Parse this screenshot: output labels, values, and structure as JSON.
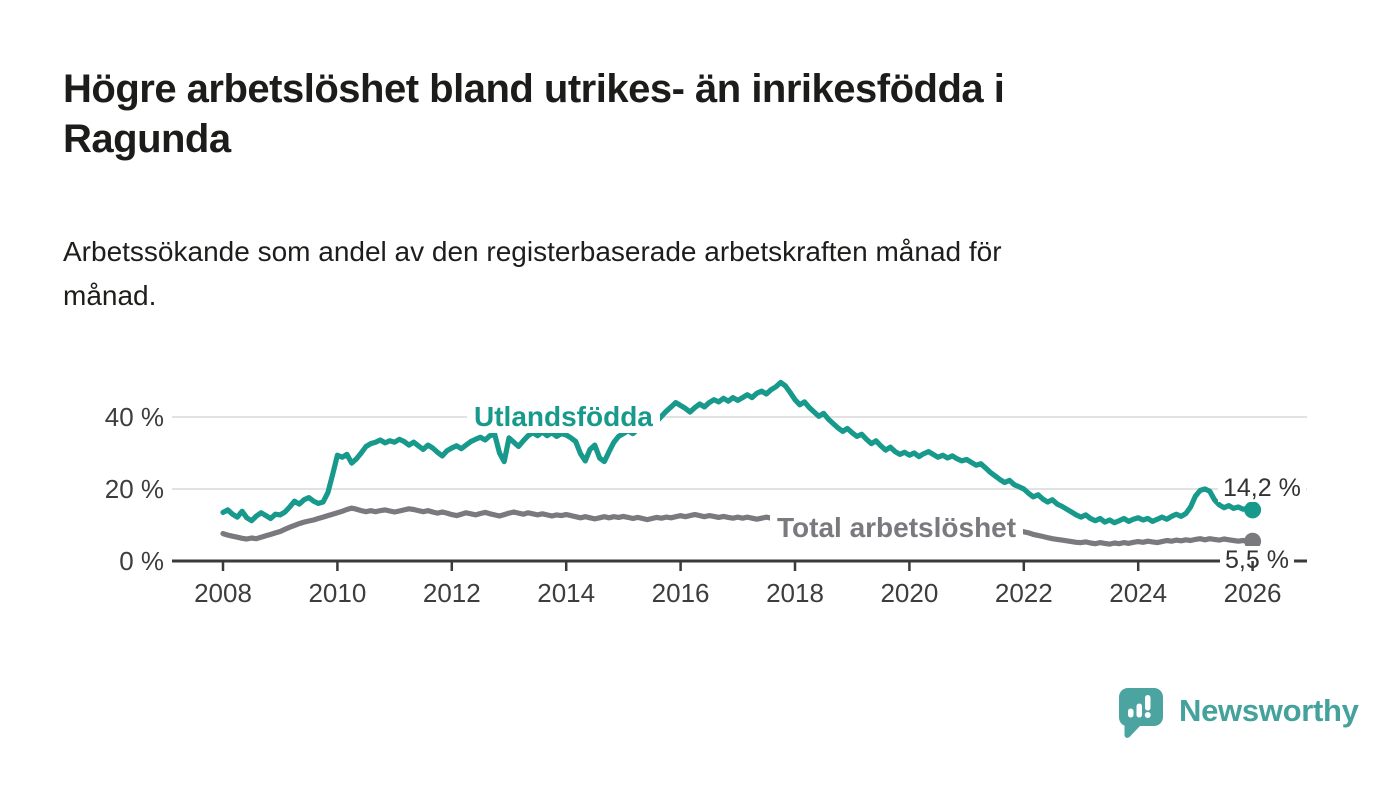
{
  "header": {
    "title_lines": [
      "Högre arbetslöshet bland utrikes- än inrikesfödda i",
      "Ragunda"
    ],
    "subtitle_lines": [
      "Arbetssökande som andel av den registerbaserade arbetskraften månad för",
      "månad."
    ]
  },
  "chart_data": {
    "type": "line",
    "unit": "%",
    "x_start_year": 2008,
    "x_step_years": 0.0833333,
    "x_tick_years": [
      2008,
      2010,
      2012,
      2014,
      2016,
      2018,
      2020,
      2022,
      2024,
      2026
    ],
    "x_tick_labels": [
      "2008",
      "2010",
      "2012",
      "2014",
      "2016",
      "2018",
      "2020",
      "2022",
      "2024",
      "2026"
    ],
    "y_tick_values": [
      0,
      20,
      40
    ],
    "y_tick_labels": [
      "0 %",
      "20 %",
      "40 %"
    ],
    "grid_values": [
      20,
      40
    ],
    "ylim": [
      0,
      52
    ],
    "grid_color": "#d8d8d8",
    "axis_color": "#3a3a3a",
    "series": [
      {
        "name": "Utlandsfödda",
        "color": "#17998b",
        "end_label": "14,2 %",
        "end_value": 14.2,
        "values": [
          13.5,
          14.2,
          13.0,
          12.2,
          13.8,
          12.0,
          11.2,
          12.5,
          13.4,
          12.6,
          11.8,
          13.0,
          12.8,
          13.6,
          15.0,
          16.6,
          15.8,
          17.0,
          17.6,
          16.6,
          16.0,
          16.4,
          19.0,
          24.0,
          29.4,
          28.8,
          29.6,
          27.2,
          28.4,
          30.0,
          31.8,
          32.6,
          33.0,
          33.6,
          32.8,
          33.4,
          33.0,
          33.8,
          33.2,
          32.2,
          33.0,
          32.0,
          31.0,
          32.2,
          31.4,
          30.2,
          29.2,
          30.6,
          31.4,
          32.0,
          31.2,
          32.2,
          33.2,
          33.8,
          34.4,
          33.6,
          34.8,
          35.2,
          30.0,
          27.6,
          34.2,
          33.0,
          31.8,
          33.4,
          34.8,
          35.6,
          34.8,
          35.8,
          34.8,
          35.6,
          34.6,
          35.4,
          35.0,
          34.2,
          33.2,
          29.8,
          27.8,
          31.0,
          32.2,
          28.6,
          27.6,
          30.4,
          33.0,
          34.6,
          35.4,
          36.2,
          35.4,
          36.6,
          37.4,
          36.6,
          37.8,
          38.8,
          40.2,
          41.6,
          42.8,
          44.0,
          43.2,
          42.4,
          41.4,
          42.6,
          43.6,
          42.8,
          44.0,
          44.8,
          44.2,
          45.2,
          44.4,
          45.4,
          44.6,
          45.4,
          46.2,
          45.4,
          46.6,
          47.2,
          46.4,
          47.6,
          48.4,
          49.6,
          48.6,
          46.8,
          44.8,
          43.4,
          44.2,
          42.6,
          41.4,
          40.2,
          41.0,
          39.4,
          38.2,
          37.0,
          36.0,
          36.8,
          35.6,
          34.6,
          35.2,
          33.8,
          32.6,
          33.4,
          32.0,
          30.8,
          31.6,
          30.4,
          29.6,
          30.2,
          29.4,
          30.0,
          29.0,
          29.8,
          30.4,
          29.6,
          28.8,
          29.4,
          28.6,
          29.2,
          28.4,
          27.8,
          28.2,
          27.4,
          26.6,
          27.0,
          25.8,
          24.6,
          23.6,
          22.6,
          21.8,
          22.4,
          21.2,
          20.6,
          20.0,
          18.8,
          17.8,
          18.4,
          17.2,
          16.4,
          17.0,
          15.8,
          15.2,
          14.4,
          13.6,
          12.8,
          12.2,
          12.8,
          11.8,
          11.2,
          11.8,
          10.8,
          11.4,
          10.6,
          11.2,
          11.8,
          11.0,
          11.6,
          12.0,
          11.4,
          11.8,
          11.0,
          11.6,
          12.2,
          11.6,
          12.4,
          13.0,
          12.4,
          13.2,
          15.0,
          18.0,
          19.6,
          20.0,
          19.4,
          17.0,
          15.6,
          14.8,
          15.4,
          14.6,
          15.0,
          14.4,
          14.6,
          14.2
        ]
      },
      {
        "name": "Total arbetslöshet",
        "color": "#7a797e",
        "end_label": "5,5 %",
        "end_value": 5.5,
        "values": [
          7.6,
          7.2,
          6.9,
          6.6,
          6.3,
          6.1,
          6.4,
          6.2,
          6.6,
          7.0,
          7.4,
          7.8,
          8.2,
          8.8,
          9.4,
          9.9,
          10.4,
          10.8,
          11.1,
          11.4,
          11.8,
          12.2,
          12.6,
          13.0,
          13.4,
          13.8,
          14.3,
          14.7,
          14.4,
          14.0,
          13.7,
          14.0,
          13.7,
          14.0,
          14.2,
          13.9,
          13.6,
          13.9,
          14.2,
          14.5,
          14.3,
          14.0,
          13.7,
          14.0,
          13.6,
          13.3,
          13.6,
          13.3,
          12.9,
          12.6,
          13.0,
          13.4,
          13.1,
          12.8,
          13.2,
          13.5,
          13.1,
          12.8,
          12.5,
          12.9,
          13.3,
          13.6,
          13.3,
          13.0,
          13.4,
          13.1,
          12.8,
          13.1,
          12.8,
          12.5,
          12.8,
          12.6,
          12.9,
          12.6,
          12.3,
          12.0,
          12.3,
          12.0,
          11.7,
          12.0,
          12.3,
          12.0,
          12.3,
          12.1,
          12.4,
          12.1,
          11.8,
          12.1,
          11.8,
          11.5,
          11.8,
          12.1,
          11.9,
          12.2,
          12.0,
          12.3,
          12.6,
          12.3,
          12.6,
          12.9,
          12.6,
          12.3,
          12.6,
          12.4,
          12.1,
          12.4,
          12.1,
          11.9,
          12.2,
          11.9,
          12.2,
          11.9,
          11.6,
          11.9,
          12.2,
          11.9,
          11.6,
          11.3,
          11.6,
          11.4,
          11.7,
          11.4,
          11.1,
          11.4,
          11.1,
          10.9,
          11.2,
          11.0,
          10.8,
          11.1,
          10.9,
          11.2,
          11.0,
          10.8,
          11.1,
          10.9,
          10.6,
          10.9,
          10.7,
          10.5,
          10.8,
          10.6,
          10.9,
          10.7,
          10.5,
          10.8,
          11.1,
          11.4,
          11.2,
          11.0,
          11.3,
          11.1,
          10.9,
          10.7,
          10.5,
          10.3,
          10.1,
          9.9,
          10.2,
          9.9,
          9.6,
          9.4,
          9.1,
          8.9,
          9.2,
          8.9,
          8.7,
          8.4,
          8.1,
          7.8,
          7.4,
          7.1,
          6.8,
          6.5,
          6.2,
          6.0,
          5.8,
          5.6,
          5.4,
          5.2,
          5.1,
          5.3,
          5.0,
          4.8,
          5.1,
          4.9,
          4.7,
          5.0,
          4.8,
          5.1,
          4.9,
          5.2,
          5.4,
          5.2,
          5.5,
          5.3,
          5.1,
          5.4,
          5.7,
          5.5,
          5.8,
          5.6,
          5.9,
          5.7,
          6.0,
          6.2,
          5.9,
          6.2,
          6.0,
          5.8,
          6.1,
          5.9,
          5.7,
          5.5,
          5.7,
          5.4,
          5.5
        ]
      }
    ]
  },
  "branding": {
    "logo_text": "Newsworthy",
    "logo_color": "#45a19c",
    "logo_icon": "speech-bubble-bar-chart"
  }
}
